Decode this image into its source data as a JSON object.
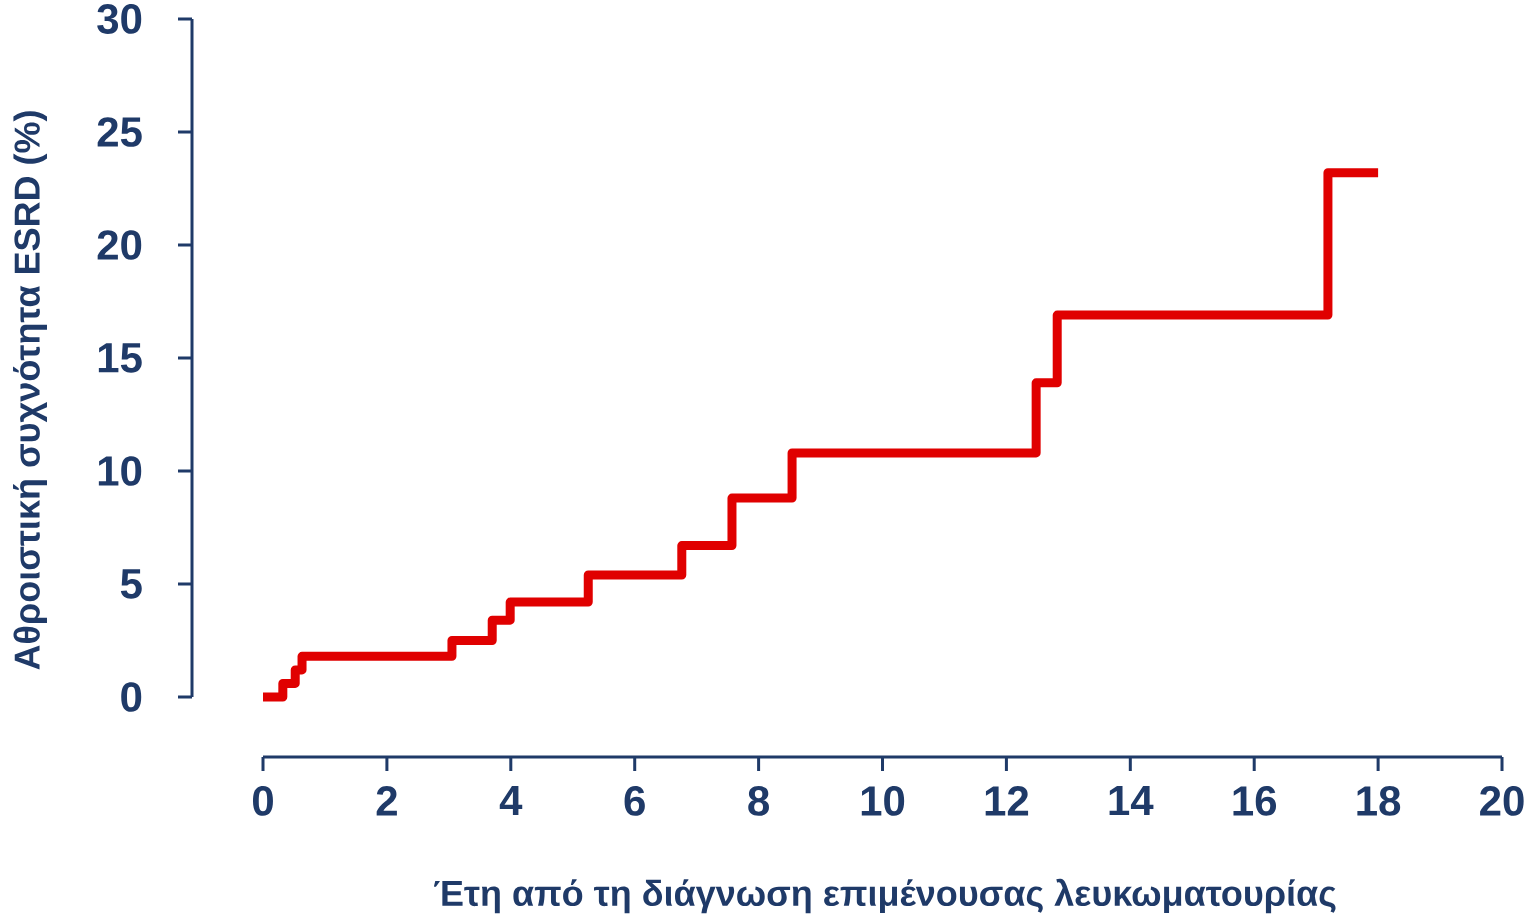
{
  "chart_data": {
    "type": "step",
    "xlabel": "Έτη από τη διάγνωση επιμένουσας λευκωματουρίας",
    "ylabel": "Αθροιστική συχνότητα  ESRD (%)",
    "x": [
      0,
      0.32,
      0.52,
      0.63,
      3.05,
      3.7,
      3.99,
      5.25,
      6.76,
      7.57,
      8.54,
      12.48,
      12.82,
      17.19,
      18.0
    ],
    "values": [
      0,
      0.6,
      1.2,
      1.8,
      2.5,
      3.4,
      4.2,
      5.4,
      6.7,
      8.8,
      10.8,
      13.9,
      16.9,
      23.2,
      23.2
    ],
    "color": "#e00000",
    "xlim": [
      0,
      20
    ],
    "ylim": [
      0,
      30
    ],
    "xticks": [
      0,
      2,
      4,
      6,
      8,
      10,
      12,
      14,
      16,
      18,
      20
    ],
    "yticks": [
      0,
      5,
      10,
      15,
      20,
      25,
      30
    ]
  }
}
